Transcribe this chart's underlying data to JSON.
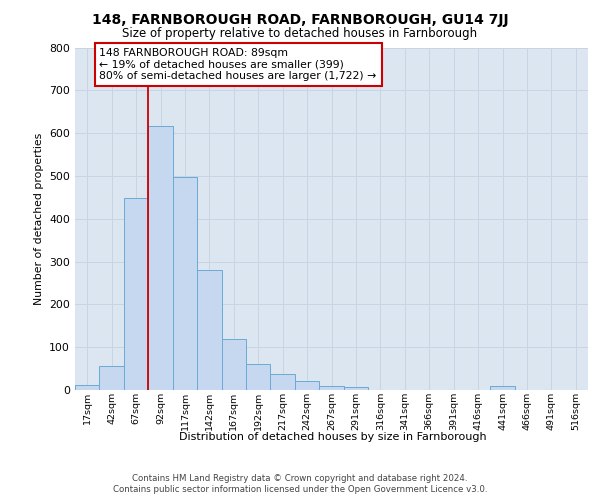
{
  "title": "148, FARNBOROUGH ROAD, FARNBOROUGH, GU14 7JJ",
  "subtitle": "Size of property relative to detached houses in Farnborough",
  "xlabel": "Distribution of detached houses by size in Farnborough",
  "ylabel": "Number of detached properties",
  "bin_labels": [
    "17sqm",
    "42sqm",
    "67sqm",
    "92sqm",
    "117sqm",
    "142sqm",
    "167sqm",
    "192sqm",
    "217sqm",
    "242sqm",
    "267sqm",
    "291sqm",
    "316sqm",
    "341sqm",
    "366sqm",
    "391sqm",
    "416sqm",
    "441sqm",
    "466sqm",
    "491sqm",
    "516sqm"
  ],
  "bar_values": [
    12,
    55,
    448,
    617,
    498,
    280,
    118,
    60,
    38,
    22,
    10,
    8,
    0,
    0,
    0,
    0,
    0,
    10,
    0,
    0,
    0
  ],
  "bar_color": "#c5d8ef",
  "bar_edge_color": "#6aaad4",
  "annotation_text": "148 FARNBOROUGH ROAD: 89sqm\n← 19% of detached houses are smaller (399)\n80% of semi-detached houses are larger (1,722) →",
  "grid_color": "#c8d4e4",
  "background_color": "#dce6f0",
  "ylim": [
    0,
    800
  ],
  "yticks": [
    0,
    100,
    200,
    300,
    400,
    500,
    600,
    700,
    800
  ],
  "property_bar_index": 3,
  "footer_line1": "Contains HM Land Registry data © Crown copyright and database right 2024.",
  "footer_line2": "Contains public sector information licensed under the Open Government Licence v3.0."
}
